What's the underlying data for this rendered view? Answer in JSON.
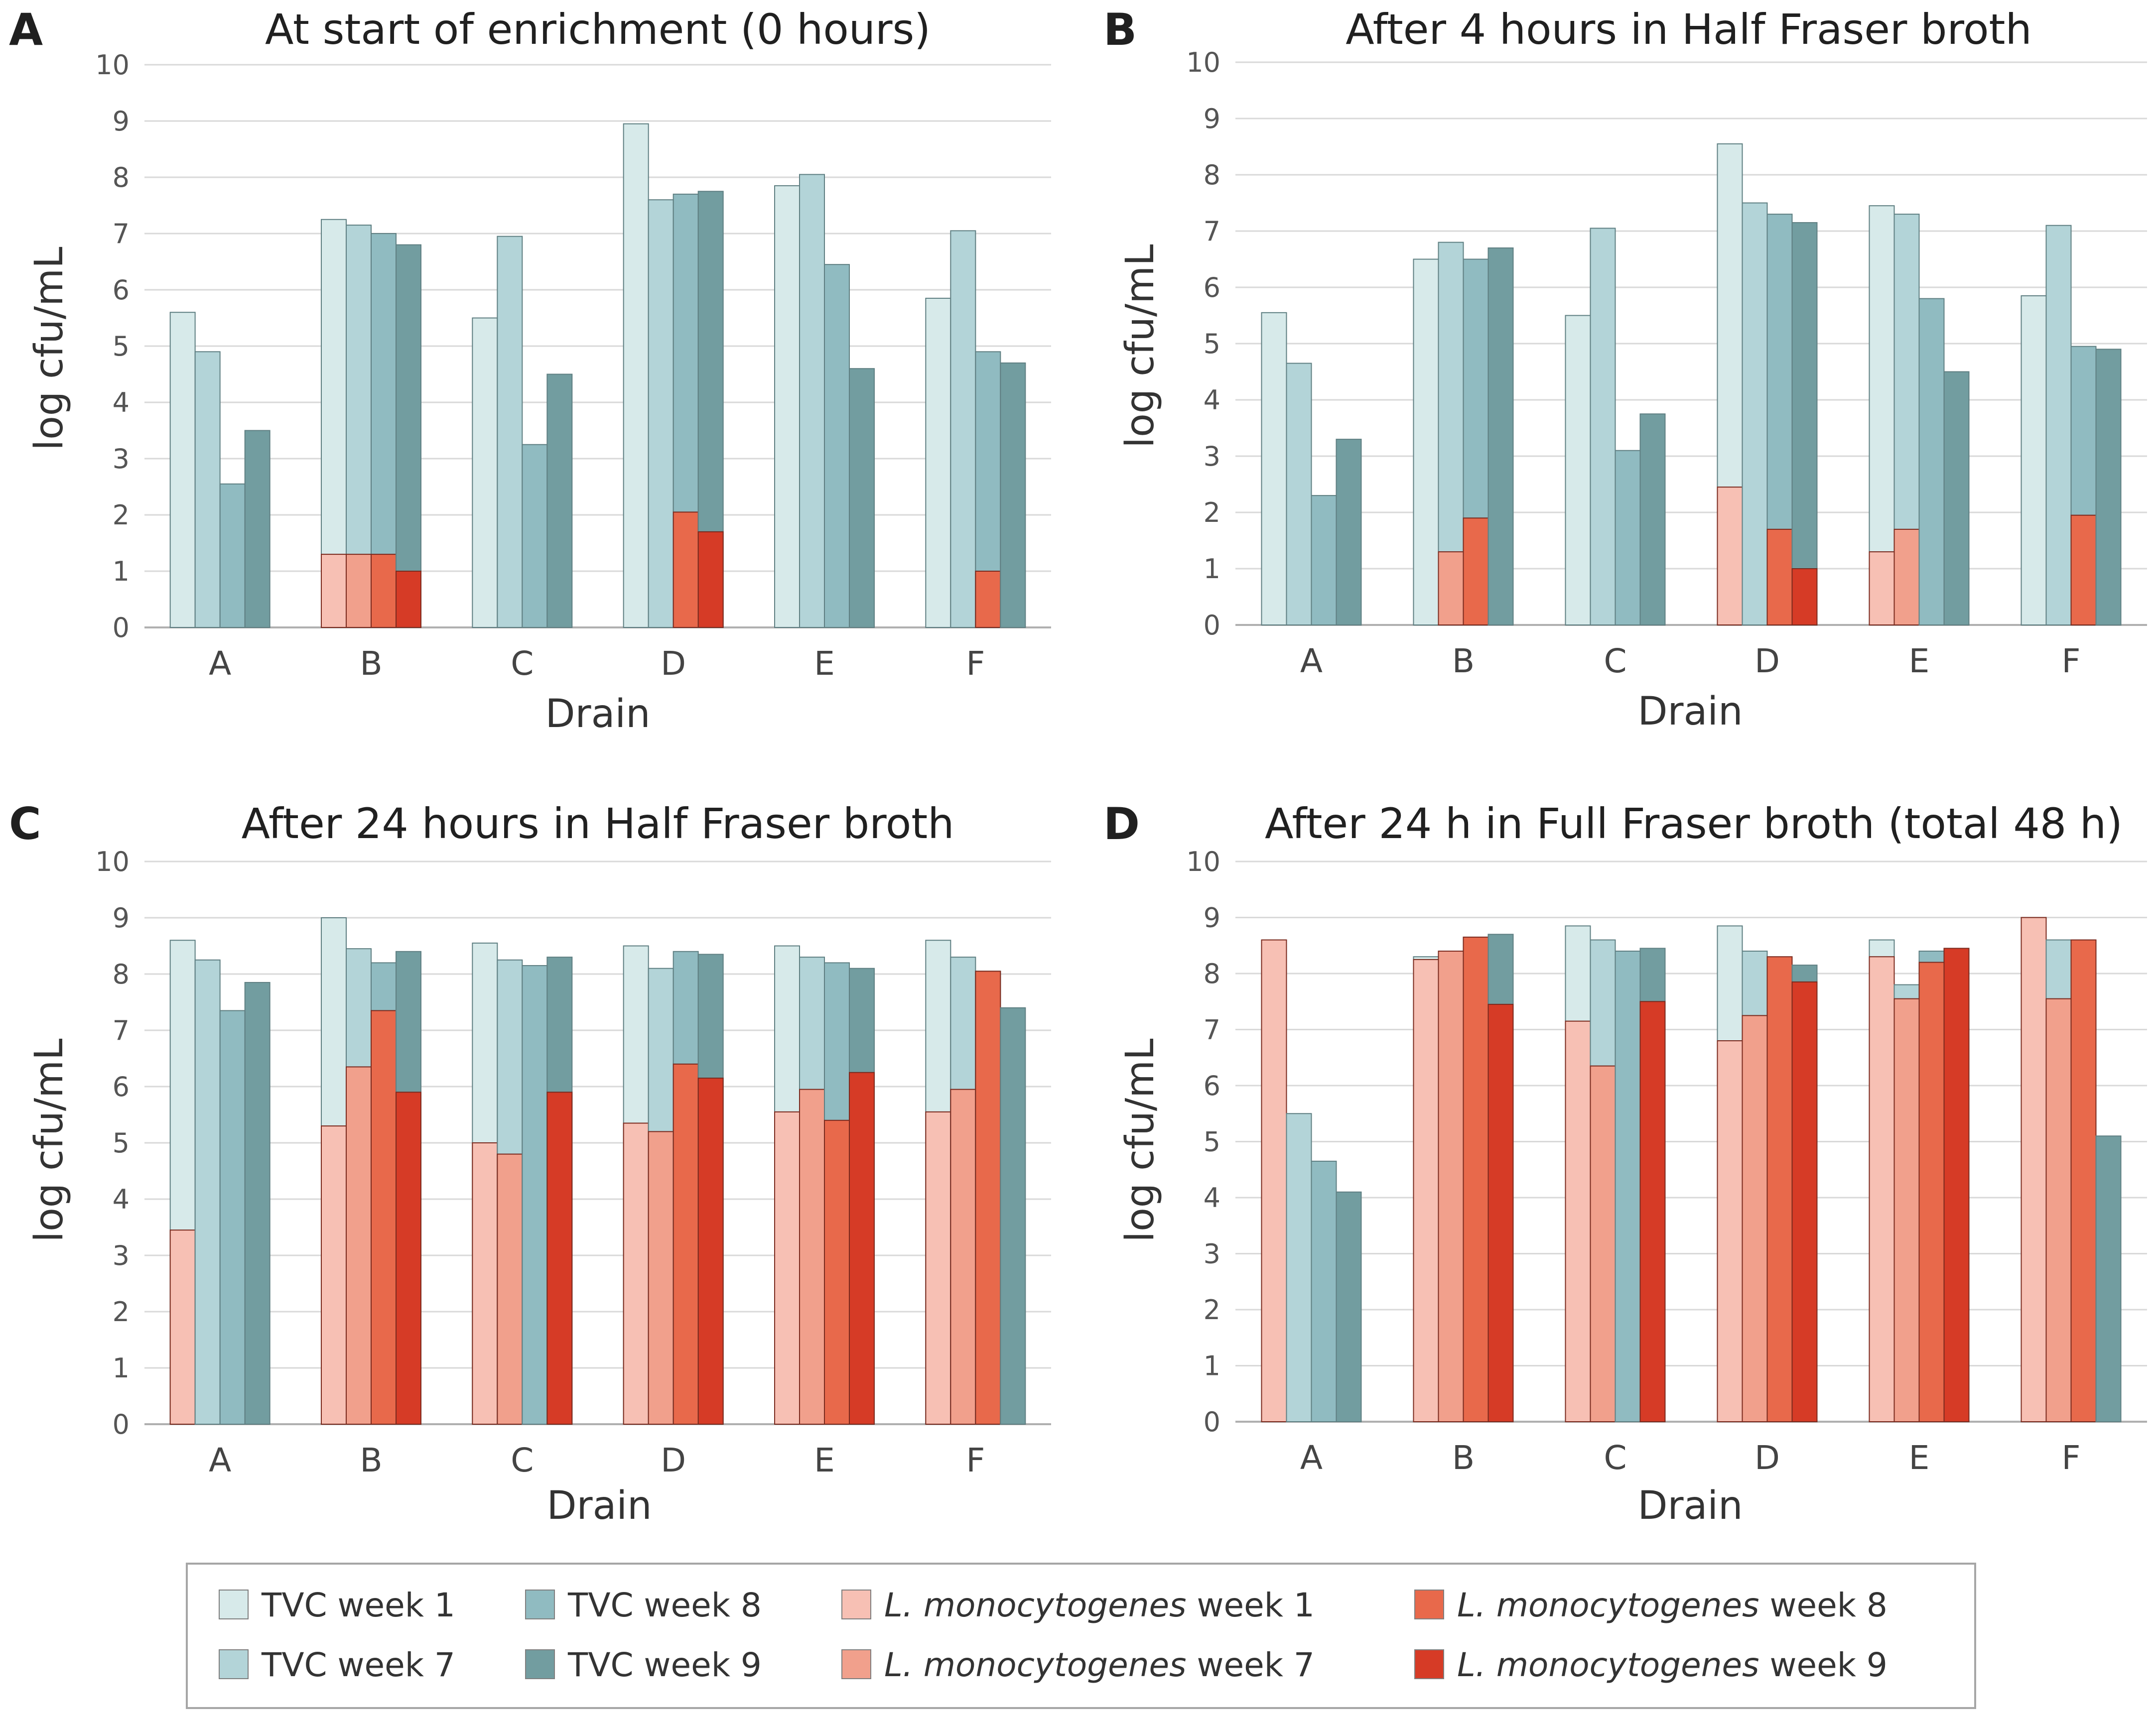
{
  "series_styles": [
    {
      "name": "TVC week 1",
      "color": "#d7eaea"
    },
    {
      "name": "TVC week 7",
      "color": "#b3d4d8"
    },
    {
      "name": "TVC week 8",
      "color": "#90bbc1"
    },
    {
      "name": "TVC week 9",
      "color": "#729da0"
    },
    {
      "name": "L. monocytogenes week 1",
      "color": "#f7c0b4"
    },
    {
      "name": "L. monocytogenes week 7",
      "color": "#f1a08c"
    },
    {
      "name": "L. monocytogenes week 8",
      "color": "#e8694b"
    },
    {
      "name": "L. monocytogenes week 9",
      "color": "#d63b26"
    }
  ],
  "legend": {
    "items": [
      {
        "pre": "",
        "italic": "",
        "post": "TVC week 1"
      },
      {
        "pre": "",
        "italic": "",
        "post": "TVC week 8"
      },
      {
        "pre": "",
        "italic": "L. monocytogenes",
        "post": " week 1"
      },
      {
        "pre": "",
        "italic": "L. monocytogenes",
        "post": " week 8"
      },
      {
        "pre": "",
        "italic": "",
        "post": "TVC week 7"
      },
      {
        "pre": "",
        "italic": "",
        "post": "TVC week 9"
      },
      {
        "pre": "",
        "italic": "L. monocytogenes",
        "post": " week 7"
      },
      {
        "pre": "",
        "italic": "L. monocytogenes",
        "post": " week 9"
      }
    ]
  },
  "chart_data": [
    {
      "letter": "A",
      "type": "bar",
      "title": "At start of enrichment (0 hours)",
      "xlabel": "Drain",
      "ylabel": "log cfu/mL",
      "ylim": [
        0,
        10
      ],
      "yticks": [
        0,
        1,
        2,
        3,
        4,
        5,
        6,
        7,
        8,
        9,
        10
      ],
      "categories": [
        "A",
        "B",
        "C",
        "D",
        "E",
        "F"
      ],
      "tvc": [
        {
          "name": "TVC week 1",
          "values": [
            5.6,
            7.25,
            5.5,
            8.95,
            7.85,
            5.85
          ]
        },
        {
          "name": "TVC week 7",
          "values": [
            4.9,
            7.15,
            6.95,
            7.6,
            8.05,
            7.05
          ]
        },
        {
          "name": "TVC week 8",
          "values": [
            2.55,
            7.0,
            3.25,
            7.7,
            6.45,
            4.9
          ]
        },
        {
          "name": "TVC week 9",
          "values": [
            3.5,
            6.8,
            4.5,
            7.75,
            4.6,
            4.7
          ]
        }
      ],
      "lm": [
        {
          "name": "L. monocytogenes week 1",
          "values": [
            0,
            1.3,
            0,
            0,
            0,
            0
          ]
        },
        {
          "name": "L. monocytogenes week 7",
          "values": [
            0,
            1.3,
            0,
            0,
            0,
            0
          ]
        },
        {
          "name": "L. monocytogenes week 8",
          "values": [
            0,
            1.3,
            0,
            2.05,
            0,
            1.0
          ]
        },
        {
          "name": "L. monocytogenes week 9",
          "values": [
            0,
            1.0,
            0,
            1.7,
            0,
            0
          ]
        }
      ]
    },
    {
      "letter": "B",
      "type": "bar",
      "title": "After 4 hours in Half Fraser broth",
      "xlabel": "Drain",
      "ylabel": "log cfu/mL",
      "ylim": [
        0,
        10
      ],
      "yticks": [
        0,
        1,
        2,
        3,
        4,
        5,
        6,
        7,
        8,
        9,
        10
      ],
      "categories": [
        "A",
        "B",
        "C",
        "D",
        "E",
        "F"
      ],
      "tvc": [
        {
          "name": "TVC week 1",
          "values": [
            5.55,
            6.5,
            5.5,
            8.55,
            7.45,
            5.85
          ]
        },
        {
          "name": "TVC week 7",
          "values": [
            4.65,
            6.8,
            7.05,
            7.5,
            7.3,
            7.1
          ]
        },
        {
          "name": "TVC week 8",
          "values": [
            2.3,
            6.5,
            3.1,
            7.3,
            5.8,
            4.95
          ]
        },
        {
          "name": "TVC week 9",
          "values": [
            3.3,
            6.7,
            3.75,
            7.15,
            4.5,
            4.9
          ]
        }
      ],
      "lm": [
        {
          "name": "L. monocytogenes week 1",
          "values": [
            0,
            0,
            0,
            2.45,
            1.3,
            0
          ]
        },
        {
          "name": "L. monocytogenes week 7",
          "values": [
            0,
            1.3,
            0,
            0,
            1.7,
            0
          ]
        },
        {
          "name": "L. monocytogenes week 8",
          "values": [
            0,
            1.9,
            0,
            1.7,
            0,
            1.95
          ]
        },
        {
          "name": "L. monocytogenes week 9",
          "values": [
            0,
            0,
            0,
            1.0,
            0,
            0
          ]
        }
      ]
    },
    {
      "letter": "C",
      "type": "bar",
      "title": "After 24 hours in Half Fraser broth",
      "xlabel": "Drain",
      "ylabel": "log cfu/mL",
      "ylim": [
        0,
        10
      ],
      "yticks": [
        0,
        1,
        2,
        3,
        4,
        5,
        6,
        7,
        8,
        9,
        10
      ],
      "categories": [
        "A",
        "B",
        "C",
        "D",
        "E",
        "F"
      ],
      "tvc": [
        {
          "name": "TVC week 1",
          "values": [
            8.6,
            9.0,
            8.55,
            8.5,
            8.5,
            8.6
          ]
        },
        {
          "name": "TVC week 7",
          "values": [
            8.25,
            8.45,
            8.25,
            8.1,
            8.3,
            8.3
          ]
        },
        {
          "name": "TVC week 8",
          "values": [
            7.35,
            8.2,
            8.15,
            8.4,
            8.2,
            8.05
          ]
        },
        {
          "name": "TVC week 9",
          "values": [
            7.85,
            8.4,
            8.3,
            8.35,
            8.1,
            7.4
          ]
        }
      ],
      "lm": [
        {
          "name": "L. monocytogenes week 1",
          "values": [
            3.45,
            5.3,
            5.0,
            5.35,
            5.55,
            5.55
          ]
        },
        {
          "name": "L. monocytogenes week 7",
          "values": [
            0,
            6.35,
            4.8,
            5.2,
            5.95,
            5.95
          ]
        },
        {
          "name": "L. monocytogenes week 8",
          "values": [
            0,
            7.35,
            0,
            6.4,
            5.4,
            8.05
          ]
        },
        {
          "name": "L. monocytogenes week 9",
          "values": [
            0,
            5.9,
            5.9,
            6.15,
            6.25,
            0
          ]
        }
      ]
    },
    {
      "letter": "D",
      "type": "bar",
      "title": "After 24 h in Full Fraser broth (total 48 h)",
      "xlabel": "Drain",
      "ylabel": "log cfu/mL",
      "ylim": [
        0,
        10
      ],
      "yticks": [
        0,
        1,
        2,
        3,
        4,
        5,
        6,
        7,
        8,
        9,
        10
      ],
      "categories": [
        "A",
        "B",
        "C",
        "D",
        "E",
        "F"
      ],
      "tvc": [
        {
          "name": "TVC week 1",
          "values": [
            0,
            8.3,
            8.85,
            8.85,
            8.6,
            0
          ]
        },
        {
          "name": "TVC week 7",
          "values": [
            5.5,
            0,
            8.6,
            8.4,
            7.8,
            8.6
          ]
        },
        {
          "name": "TVC week 8",
          "values": [
            4.65,
            0,
            8.4,
            0,
            8.4,
            8.6
          ]
        },
        {
          "name": "TVC week 9",
          "values": [
            4.1,
            8.7,
            8.45,
            8.15,
            0,
            5.1
          ]
        }
      ],
      "lm": [
        {
          "name": "L. monocytogenes week 1",
          "values": [
            8.6,
            8.25,
            7.15,
            6.8,
            8.3,
            9.0
          ]
        },
        {
          "name": "L. monocytogenes week 7",
          "values": [
            0,
            8.4,
            6.35,
            7.25,
            7.55,
            7.55
          ]
        },
        {
          "name": "L. monocytogenes week 8",
          "values": [
            0,
            8.65,
            0,
            8.3,
            8.2,
            8.6
          ]
        },
        {
          "name": "L. monocytogenes week 9",
          "values": [
            0,
            7.45,
            7.5,
            7.85,
            8.45,
            0
          ]
        }
      ]
    }
  ]
}
